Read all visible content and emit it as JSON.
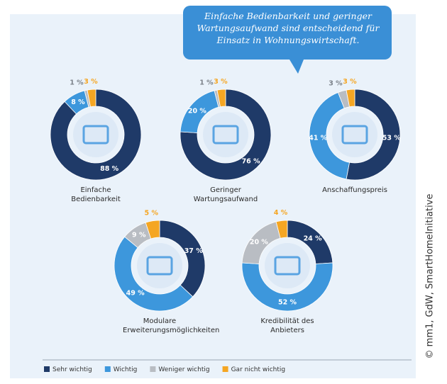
{
  "title": "Einfache Bedienbarkeit und geringer Wartungsaufwand sind entscheidend für Einsatz in Wohnungswirtschaft.",
  "credit": "© mm1, GdW, SmartHomeInitiative",
  "legend": {
    "names": [
      "Sehr wichtig",
      "Wichtig",
      "Weniger wichtig",
      "Gar nicht wichtig"
    ],
    "colors": [
      "#1f3a68",
      "#3d97dc",
      "#b9bdc3",
      "#f5a623"
    ]
  },
  "chart_data": [
    {
      "type": "pie",
      "label": "Einfache Bedienbarkeit",
      "values": [
        88,
        8,
        1,
        3
      ],
      "value_labels": [
        "88 %",
        "8 %",
        "1 %",
        "3 %"
      ]
    },
    {
      "type": "pie",
      "label": "Geringer Wartungsaufwand",
      "values": [
        76,
        20,
        1,
        3
      ],
      "value_labels": [
        "76 %",
        "20 %",
        "1 %",
        "3 %"
      ]
    },
    {
      "type": "pie",
      "label": "Anschaffungspreis",
      "values": [
        53,
        41,
        3,
        3
      ],
      "value_labels": [
        "53 %",
        "41 %",
        "3 %",
        "3 %"
      ]
    },
    {
      "type": "pie",
      "label": "Modulare Erweiterungsmöglichkeiten",
      "values": [
        37,
        49,
        9,
        5
      ],
      "value_labels": [
        "37 %",
        "49 %",
        "9 %",
        "5 %"
      ]
    },
    {
      "type": "pie",
      "label": "Kredibilität des Anbieters",
      "values": [
        24,
        52,
        20,
        4
      ],
      "value_labels": [
        "24 %",
        "52 %",
        "20 %",
        "4 %"
      ]
    }
  ]
}
